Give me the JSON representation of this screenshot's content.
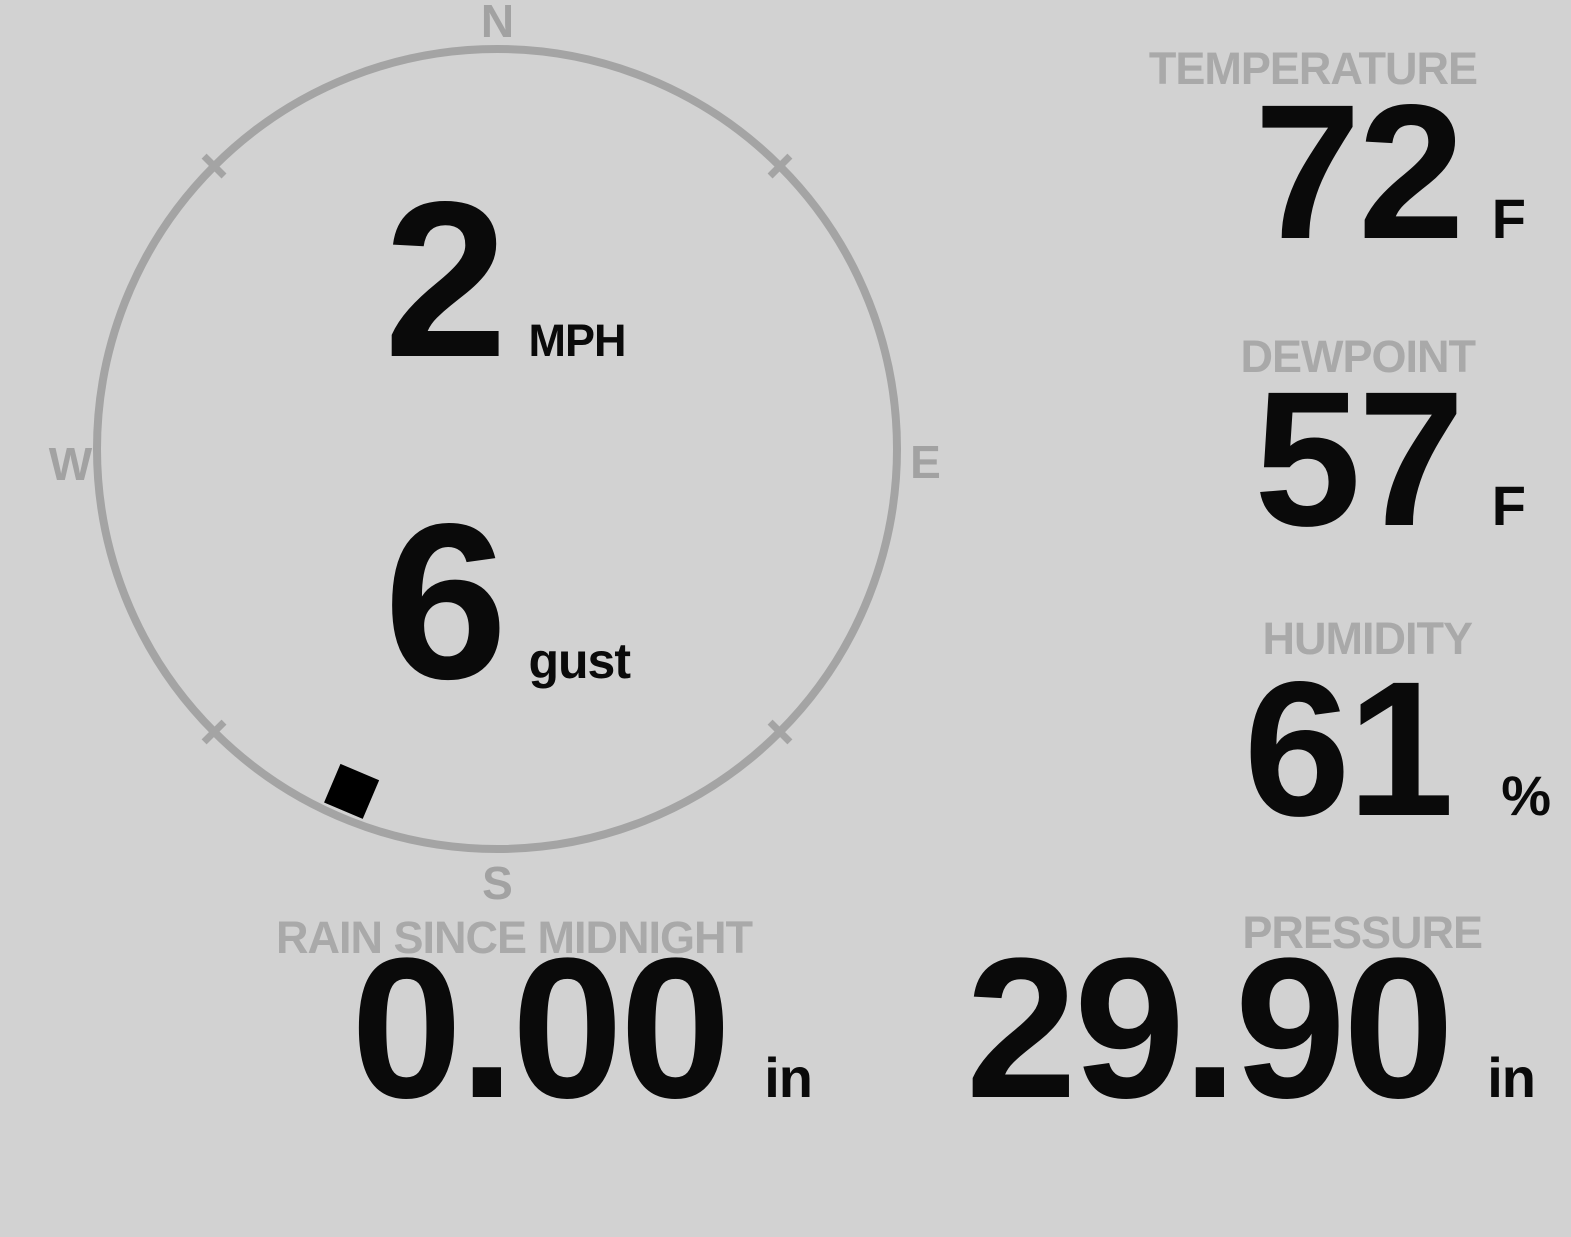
{
  "colors": {
    "background": "#d2d2d2",
    "compass_ring": "#a4a4a4",
    "compass_letters": "#a2a2a2",
    "section_labels": "#a9a9a9",
    "values": "#0a0a0a",
    "wind_marker": "#000000"
  },
  "wind": {
    "speed": "2",
    "speed_unit": "MPH",
    "gust": "6",
    "gust_unit": "gust",
    "direction_deg": 203,
    "compass": {
      "north": "N",
      "east": "E",
      "south": "S",
      "west": "W"
    }
  },
  "temperature": {
    "label": "TEMPERATURE",
    "value": "72",
    "unit": "F"
  },
  "dewpoint": {
    "label": "DEWPOINT",
    "value": "57",
    "unit": "F"
  },
  "humidity": {
    "label": "HUMIDITY",
    "value": "61",
    "unit": "%"
  },
  "rain": {
    "label": "RAIN SINCE MIDNIGHT",
    "value": "0.00",
    "unit": "in"
  },
  "pressure": {
    "label": "PRESSURE",
    "value": "29.90",
    "unit": "in"
  }
}
